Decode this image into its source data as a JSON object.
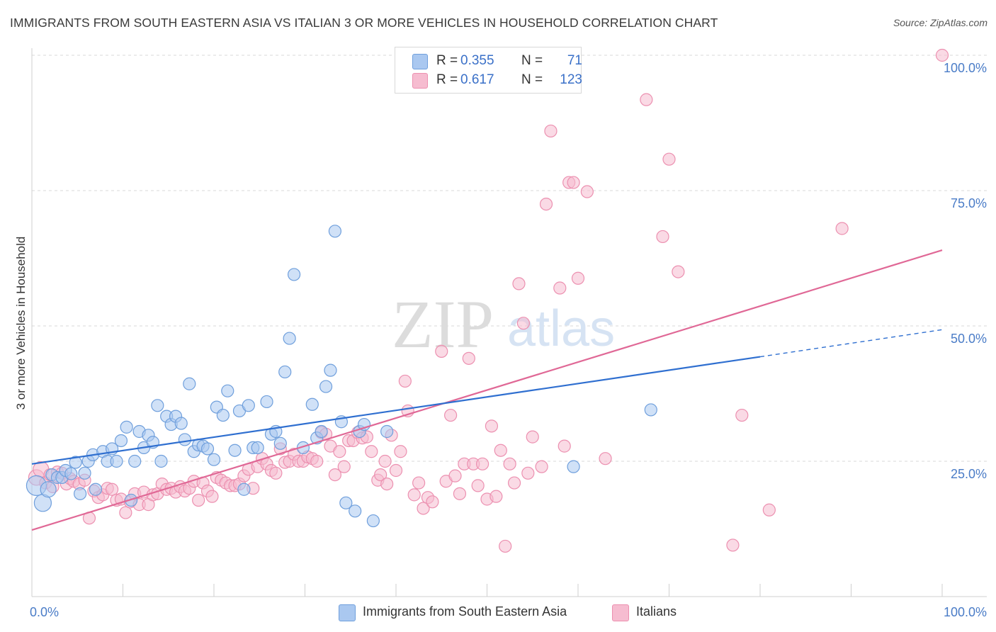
{
  "title": "IMMIGRANTS FROM SOUTH EASTERN ASIA VS ITALIAN 3 OR MORE VEHICLES IN HOUSEHOLD CORRELATION CHART",
  "source": "Source: ZipAtlas.com",
  "watermark": {
    "zip": "ZIP",
    "atlas": "atlas"
  },
  "colors": {
    "blue_fill": "#aac8f0",
    "blue_stroke": "#6f9fdc",
    "blue_line": "#2f6fd0",
    "pink_fill": "#f6bcd0",
    "pink_stroke": "#ec90b0",
    "pink_line": "#e06896",
    "tick_text": "#4a7cc7",
    "grid": "#d9d9d9"
  },
  "legend_top": {
    "rows": [
      {
        "r_label": "R =",
        "r_value": "0.355",
        "n_label": "N =",
        "n_value": "71"
      },
      {
        "r_label": "R =",
        "r_value": "0.617",
        "n_label": "N =",
        "n_value": "123"
      }
    ]
  },
  "legend_bottom": {
    "items": [
      "Immigrants from South Eastern Asia",
      "Italians"
    ]
  },
  "chart_data": {
    "type": "scatter",
    "ylabel": "3 or more Vehicles in Household",
    "xlim": [
      0,
      100
    ],
    "ylim": [
      0,
      100
    ],
    "x_tick_labels": [
      {
        "value": 0,
        "label": "0.0%"
      },
      {
        "value": 100,
        "label": "100.0%"
      }
    ],
    "y_tick_labels": [
      {
        "value": 25,
        "label": "25.0%"
      },
      {
        "value": 50,
        "label": "50.0%"
      },
      {
        "value": 75,
        "label": "75.0%"
      },
      {
        "value": 100,
        "label": "100.0%"
      }
    ],
    "x_minor_ticks": [
      10,
      20,
      30,
      40,
      50,
      60,
      70,
      80,
      90
    ],
    "grid": "horizontal dashed",
    "legend_placement": "top-center",
    "series": [
      {
        "name": "Immigrants from South Eastern Asia",
        "color": "blue",
        "trend": {
          "x0": 0,
          "y0": 24.5,
          "x1": 80,
          "y1": 44.3,
          "dashed_to_x": 100,
          "dashed_to_y": 49.3
        },
        "points": [
          [
            0.5,
            20.5,
            6
          ],
          [
            1.2,
            17.3,
            5
          ],
          [
            1.8,
            19.8,
            4
          ],
          [
            2.2,
            22.5,
            3
          ],
          [
            2.8,
            22.0,
            3
          ],
          [
            3.3,
            22.0,
            3
          ],
          [
            3.7,
            23.3,
            3
          ],
          [
            4.3,
            22.7,
            3
          ],
          [
            4.8,
            24.8,
            3
          ],
          [
            5.3,
            19.0,
            3
          ],
          [
            5.8,
            22.8,
            3
          ],
          [
            6.2,
            25.0,
            3
          ],
          [
            6.7,
            26.2,
            3
          ],
          [
            7.0,
            19.8,
            3
          ],
          [
            7.8,
            26.8,
            3
          ],
          [
            8.3,
            25.0,
            3
          ],
          [
            8.8,
            27.3,
            3
          ],
          [
            9.3,
            25.0,
            3
          ],
          [
            9.8,
            28.8,
            3
          ],
          [
            10.4,
            31.3,
            3
          ],
          [
            10.9,
            17.8,
            3
          ],
          [
            11.3,
            25.0,
            3
          ],
          [
            11.8,
            30.5,
            3
          ],
          [
            12.3,
            27.5,
            3
          ],
          [
            12.8,
            29.8,
            3
          ],
          [
            13.3,
            28.5,
            3
          ],
          [
            13.8,
            35.3,
            3
          ],
          [
            14.2,
            25.0,
            3
          ],
          [
            14.8,
            33.3,
            3
          ],
          [
            15.3,
            31.8,
            3
          ],
          [
            15.8,
            33.3,
            3
          ],
          [
            16.4,
            32.0,
            3
          ],
          [
            16.8,
            29.0,
            3
          ],
          [
            17.3,
            39.3,
            3
          ],
          [
            17.8,
            26.8,
            3
          ],
          [
            18.3,
            28.0,
            3
          ],
          [
            18.8,
            27.8,
            3
          ],
          [
            19.3,
            27.3,
            3
          ],
          [
            20.0,
            25.3,
            3
          ],
          [
            20.3,
            35.0,
            3
          ],
          [
            21.0,
            33.5,
            3
          ],
          [
            21.5,
            38.0,
            3
          ],
          [
            22.3,
            27.0,
            3
          ],
          [
            22.8,
            34.3,
            3
          ],
          [
            23.3,
            19.8,
            3
          ],
          [
            23.8,
            35.3,
            3
          ],
          [
            24.3,
            27.5,
            3
          ],
          [
            24.8,
            27.5,
            3
          ],
          [
            25.8,
            36.0,
            3
          ],
          [
            26.3,
            30.0,
            3
          ],
          [
            26.8,
            30.5,
            3
          ],
          [
            27.3,
            28.3,
            3
          ],
          [
            27.8,
            41.5,
            3
          ],
          [
            28.3,
            47.7,
            3
          ],
          [
            28.8,
            59.5,
            3
          ],
          [
            29.8,
            27.5,
            3
          ],
          [
            30.8,
            35.5,
            3
          ],
          [
            31.3,
            29.3,
            3
          ],
          [
            31.8,
            30.5,
            3
          ],
          [
            32.3,
            38.8,
            3
          ],
          [
            32.8,
            41.8,
            3
          ],
          [
            33.3,
            67.5,
            3
          ],
          [
            34.0,
            32.3,
            3
          ],
          [
            34.5,
            17.3,
            3
          ],
          [
            35.5,
            15.8,
            3
          ],
          [
            36.0,
            30.5,
            3
          ],
          [
            36.5,
            31.8,
            3
          ],
          [
            37.5,
            14.0,
            3
          ],
          [
            39.0,
            30.5,
            3
          ],
          [
            59.5,
            24.0,
            3
          ],
          [
            68.0,
            34.5,
            3
          ]
        ]
      },
      {
        "name": "Italians",
        "color": "pink",
        "trend": {
          "x0": 0,
          "y0": 12.3,
          "x1": 100,
          "y1": 64.0
        },
        "points": [
          [
            0.5,
            22.0,
            4
          ],
          [
            1.0,
            23.5,
            4
          ],
          [
            1.5,
            21.0,
            3
          ],
          [
            2.0,
            22.5,
            3
          ],
          [
            2.3,
            20.3,
            3
          ],
          [
            2.8,
            23.0,
            3
          ],
          [
            3.3,
            22.8,
            3
          ],
          [
            3.8,
            20.8,
            3
          ],
          [
            4.2,
            21.8,
            3
          ],
          [
            4.6,
            21.3,
            3
          ],
          [
            5.2,
            20.8,
            3
          ],
          [
            5.8,
            21.5,
            3
          ],
          [
            6.3,
            14.5,
            3
          ],
          [
            6.8,
            19.5,
            3
          ],
          [
            7.3,
            18.3,
            3
          ],
          [
            7.8,
            18.8,
            3
          ],
          [
            8.3,
            20.0,
            3
          ],
          [
            8.8,
            19.8,
            3
          ],
          [
            9.3,
            17.8,
            3
          ],
          [
            9.8,
            18.0,
            3
          ],
          [
            10.3,
            15.5,
            3
          ],
          [
            10.8,
            17.5,
            3
          ],
          [
            11.3,
            19.0,
            3
          ],
          [
            11.8,
            17.0,
            3
          ],
          [
            12.3,
            19.3,
            3
          ],
          [
            12.8,
            17.0,
            3
          ],
          [
            13.3,
            18.8,
            3
          ],
          [
            13.8,
            19.0,
            3
          ],
          [
            14.3,
            20.8,
            3
          ],
          [
            14.8,
            19.8,
            3
          ],
          [
            15.3,
            20.0,
            3
          ],
          [
            15.8,
            19.3,
            3
          ],
          [
            16.3,
            20.3,
            3
          ],
          [
            16.8,
            19.5,
            3
          ],
          [
            17.3,
            20.0,
            3
          ],
          [
            17.8,
            21.3,
            3
          ],
          [
            18.3,
            17.8,
            3
          ],
          [
            18.8,
            21.0,
            3
          ],
          [
            19.3,
            19.5,
            3
          ],
          [
            19.8,
            18.5,
            3
          ],
          [
            20.3,
            22.0,
            3
          ],
          [
            20.8,
            21.5,
            3
          ],
          [
            21.3,
            21.0,
            3
          ],
          [
            21.8,
            20.5,
            3
          ],
          [
            22.3,
            20.5,
            3
          ],
          [
            22.8,
            20.8,
            3
          ],
          [
            23.3,
            22.3,
            3
          ],
          [
            23.8,
            23.5,
            3
          ],
          [
            24.3,
            20.0,
            3
          ],
          [
            24.8,
            24.0,
            3
          ],
          [
            25.3,
            25.5,
            3
          ],
          [
            25.8,
            24.5,
            3
          ],
          [
            26.3,
            23.3,
            3
          ],
          [
            26.8,
            22.8,
            3
          ],
          [
            27.3,
            27.3,
            3
          ],
          [
            27.8,
            24.8,
            3
          ],
          [
            28.3,
            25.0,
            3
          ],
          [
            28.8,
            26.3,
            3
          ],
          [
            29.3,
            25.0,
            3
          ],
          [
            29.8,
            25.0,
            3
          ],
          [
            30.3,
            25.8,
            3
          ],
          [
            30.8,
            25.5,
            3
          ],
          [
            31.3,
            25.0,
            3
          ],
          [
            31.8,
            30.3,
            3
          ],
          [
            32.3,
            30.0,
            3
          ],
          [
            32.8,
            27.8,
            3
          ],
          [
            33.3,
            22.5,
            3
          ],
          [
            33.8,
            26.8,
            3
          ],
          [
            34.3,
            24.0,
            3
          ],
          [
            34.8,
            28.8,
            3
          ],
          [
            35.3,
            28.8,
            3
          ],
          [
            35.8,
            30.3,
            3
          ],
          [
            36.3,
            29.3,
            3
          ],
          [
            36.8,
            29.5,
            3
          ],
          [
            37.3,
            26.8,
            3
          ],
          [
            38.0,
            21.5,
            3
          ],
          [
            38.3,
            22.5,
            3
          ],
          [
            38.8,
            25.0,
            3
          ],
          [
            39.0,
            20.8,
            3
          ],
          [
            39.5,
            29.8,
            3
          ],
          [
            40.0,
            23.3,
            3
          ],
          [
            40.5,
            26.8,
            3
          ],
          [
            41.0,
            39.8,
            3
          ],
          [
            41.3,
            34.3,
            3
          ],
          [
            42.0,
            18.8,
            3
          ],
          [
            42.5,
            21.0,
            3
          ],
          [
            43.0,
            16.3,
            3
          ],
          [
            43.5,
            18.3,
            3
          ],
          [
            44.0,
            17.5,
            3
          ],
          [
            45.0,
            45.3,
            3
          ],
          [
            45.5,
            21.3,
            3
          ],
          [
            46.0,
            33.5,
            3
          ],
          [
            46.5,
            22.3,
            3
          ],
          [
            47.0,
            19.0,
            3
          ],
          [
            47.5,
            24.5,
            3
          ],
          [
            48.0,
            44.0,
            3
          ],
          [
            48.5,
            24.5,
            3
          ],
          [
            49.0,
            20.5,
            3
          ],
          [
            49.5,
            24.5,
            3
          ],
          [
            50.0,
            18.0,
            3
          ],
          [
            50.5,
            31.5,
            3
          ],
          [
            51.0,
            18.5,
            3
          ],
          [
            51.5,
            27.0,
            3
          ],
          [
            52.0,
            9.3,
            3
          ],
          [
            52.5,
            24.5,
            3
          ],
          [
            53.0,
            21.0,
            3
          ],
          [
            53.5,
            57.8,
            3
          ],
          [
            54.0,
            50.5,
            3
          ],
          [
            54.5,
            22.8,
            3
          ],
          [
            55.0,
            29.5,
            3
          ],
          [
            56.0,
            24.0,
            3
          ],
          [
            56.5,
            72.5,
            3
          ],
          [
            57.0,
            86.0,
            3
          ],
          [
            58.0,
            57.0,
            3
          ],
          [
            58.5,
            27.8,
            3
          ],
          [
            59.0,
            76.5,
            3
          ],
          [
            59.5,
            76.5,
            3
          ],
          [
            60.0,
            58.8,
            3
          ],
          [
            61.0,
            74.8,
            3
          ],
          [
            63.0,
            25.5,
            3
          ],
          [
            67.5,
            91.8,
            3
          ],
          [
            69.3,
            66.5,
            3
          ],
          [
            70.0,
            80.8,
            3
          ],
          [
            71.0,
            60.0,
            3
          ],
          [
            77.0,
            9.5,
            3
          ],
          [
            78.0,
            33.5,
            3
          ],
          [
            81.0,
            16.0,
            3
          ],
          [
            89.0,
            68.0,
            3
          ],
          [
            100.0,
            100.0,
            3
          ]
        ]
      }
    ]
  }
}
